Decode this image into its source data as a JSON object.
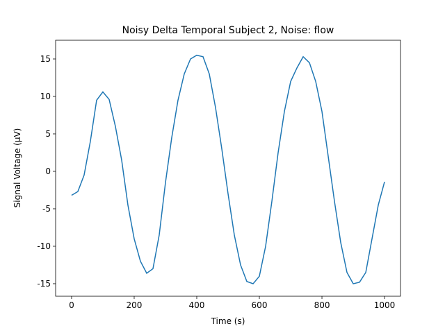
{
  "chart_data": {
    "type": "line",
    "title": "Noisy Delta Temporal Subject 2, Noise: flow",
    "xlabel": "Time (s)",
    "ylabel": "Signal Voltage (μV)",
    "x": [
      0,
      20,
      40,
      60,
      80,
      100,
      120,
      140,
      160,
      180,
      200,
      220,
      240,
      260,
      280,
      300,
      320,
      340,
      360,
      380,
      400,
      420,
      440,
      460,
      480,
      500,
      520,
      540,
      560,
      580,
      600,
      620,
      640,
      660,
      680,
      700,
      720,
      740,
      760,
      780,
      800,
      820,
      840,
      860,
      880,
      900,
      920,
      940,
      960,
      980,
      1000
    ],
    "series": [
      {
        "color": "#1f77b4",
        "values": [
          -3.2,
          -2.7,
          -0.5,
          4,
          9.5,
          10.6,
          9.6,
          6,
          1.5,
          -4.5,
          -9,
          -12,
          -13.6,
          -13,
          -8.5,
          -1.5,
          4.5,
          9.5,
          13,
          15,
          15.5,
          15.3,
          13,
          8.5,
          3,
          -3,
          -8.5,
          -12.5,
          -14.7,
          -15,
          -14,
          -10,
          -4,
          2.5,
          8,
          12,
          13.8,
          15.3,
          14.5,
          12,
          8,
          2,
          -4,
          -9.5,
          -13.5,
          -15,
          -14.8,
          -13.5,
          -9,
          -4.5,
          -1.4
        ]
      }
    ],
    "xlim": [
      -51,
      1051
    ],
    "ylim": [
      -16.67,
      17.5
    ],
    "xticks": [
      0,
      200,
      400,
      600,
      800,
      1000
    ],
    "yticks": [
      -15,
      -10,
      -5,
      0,
      5,
      10,
      15
    ]
  }
}
